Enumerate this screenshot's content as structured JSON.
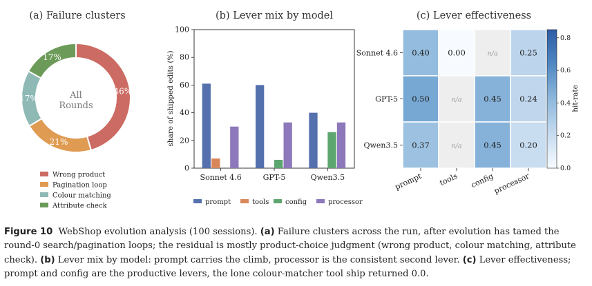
{
  "chart_data": [
    {
      "type": "pie",
      "title": "(a) Failure clusters",
      "center_label": [
        "All",
        "Rounds"
      ],
      "slices": [
        {
          "label": "Wrong product",
          "value": 46,
          "text": "46%",
          "color": "#cc6b63"
        },
        {
          "label": "Pagination loop",
          "value": 21,
          "text": "21%",
          "color": "#e09b52"
        },
        {
          "label": "Colour matching",
          "value": 17,
          "text": "17%",
          "color": "#8fb9b5"
        },
        {
          "label": "Attribute check",
          "value": 17,
          "text": "17%",
          "color": "#6c9b59"
        }
      ]
    },
    {
      "type": "bar",
      "title": "(b) Lever mix by model",
      "categories": [
        "Sonnet 4.6",
        "GPT-5",
        "Qwen3.5"
      ],
      "ylabel": "share of shipped edits (%)",
      "ylim": [
        0,
        100
      ],
      "yticks": [
        0,
        20,
        40,
        60,
        80,
        100
      ],
      "series": [
        {
          "name": "prompt",
          "color": "#5470ad",
          "values": [
            61,
            60,
            40
          ]
        },
        {
          "name": "tools",
          "color": "#d8875a",
          "values": [
            7,
            0,
            0
          ]
        },
        {
          "name": "config",
          "color": "#5ea670",
          "values": [
            0,
            6,
            26
          ]
        },
        {
          "name": "processor",
          "color": "#8c78ba",
          "values": [
            30,
            33,
            33
          ]
        }
      ]
    },
    {
      "type": "heatmap",
      "title": "(c) Lever effectiveness",
      "rows": [
        "Sonnet 4.6",
        "GPT-5",
        "Qwen3.5"
      ],
      "cols": [
        "prompt",
        "tools",
        "config",
        "processor"
      ],
      "values": [
        [
          0.4,
          0.0,
          null,
          0.25
        ],
        [
          0.5,
          null,
          0.45,
          0.24
        ],
        [
          0.37,
          null,
          0.45,
          0.2
        ]
      ],
      "labels": [
        [
          "0.40",
          "0.00",
          "n/a",
          "0.25"
        ],
        [
          "0.50",
          "n/a",
          "0.45",
          "0.24"
        ],
        [
          "0.37",
          "n/a",
          "0.45",
          "0.20"
        ]
      ],
      "na_label": "n/a",
      "colorbar_label": "hit-rate",
      "colorbar_range": [
        0,
        0.85
      ],
      "colorbar_ticks": [
        "0.0",
        "0.2",
        "0.4",
        "0.6",
        "0.8"
      ]
    }
  ],
  "caption": {
    "fig_label": "Figure 10",
    "intro": "WebShop evolution analysis (100 sessions).",
    "a_label": "(a)",
    "a_text": "Failure clusters across the run, after evolution has tamed the round-0 search/pagination loops; the residual is mostly product-choice judgment (wrong product, colour matching, attribute check).",
    "b_label": "(b)",
    "b_text": "Lever mix by model: prompt carries the climb, processor is the consistent second lever.",
    "c_label": "(c)",
    "c_text": "Lever effectiveness; prompt and config are the productive levers, the lone colour-matcher tool ship returned 0.0."
  }
}
